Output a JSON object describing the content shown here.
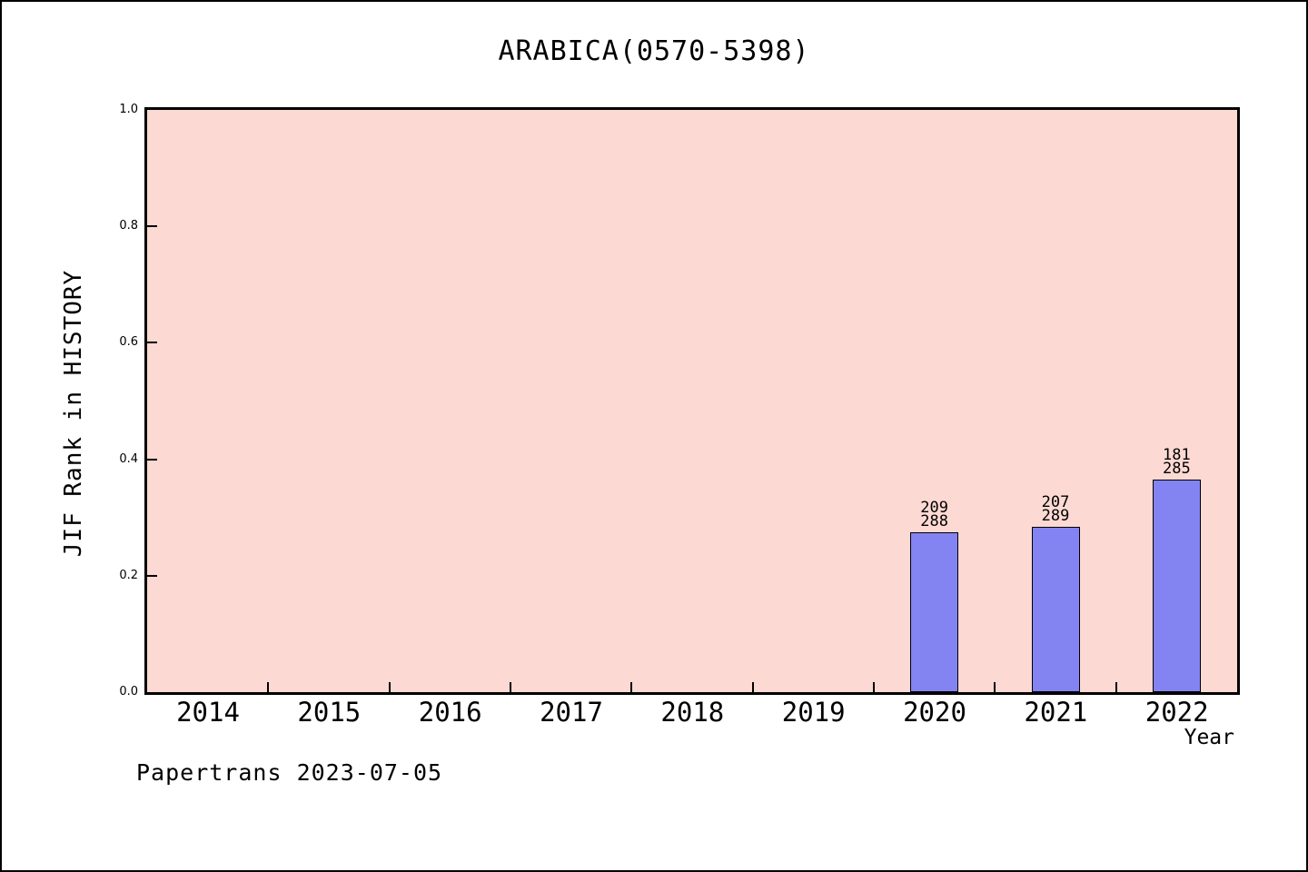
{
  "window": {
    "background_color": "#ffffff",
    "border_color": "#000000"
  },
  "chart_data": {
    "type": "bar",
    "title": "ARABICA(0570-5398)",
    "xlabel": "Year",
    "ylabel": "JIF Rank in HISTORY",
    "categories": [
      "2014",
      "2015",
      "2016",
      "2017",
      "2018",
      "2019",
      "2020",
      "2021",
      "2022"
    ],
    "ylim": [
      0.0,
      1.0
    ],
    "ytick_labels": [
      "0.0",
      "0.2",
      "0.4",
      "0.6",
      "0.8",
      "1.0"
    ],
    "grid": false,
    "legend_position": "none",
    "plot_bg_color": "#fcd9d3",
    "bar_color": "#8383f2",
    "bar_edge_color": "#000000",
    "series": [
      {
        "name": "JIF Rank in HISTORY",
        "points": [
          {
            "year": "2020",
            "rank": 209,
            "total": 288,
            "value": 0.2743,
            "label_top": "209",
            "label_bottom": "288"
          },
          {
            "year": "2021",
            "rank": 207,
            "total": 289,
            "value": 0.2837,
            "label_top": "207",
            "label_bottom": "289"
          },
          {
            "year": "2022",
            "rank": 181,
            "total": 285,
            "value": 0.3649,
            "label_top": "181",
            "label_bottom": "285"
          }
        ]
      }
    ]
  },
  "footer": {
    "text": "Papertrans 2023-07-05"
  }
}
